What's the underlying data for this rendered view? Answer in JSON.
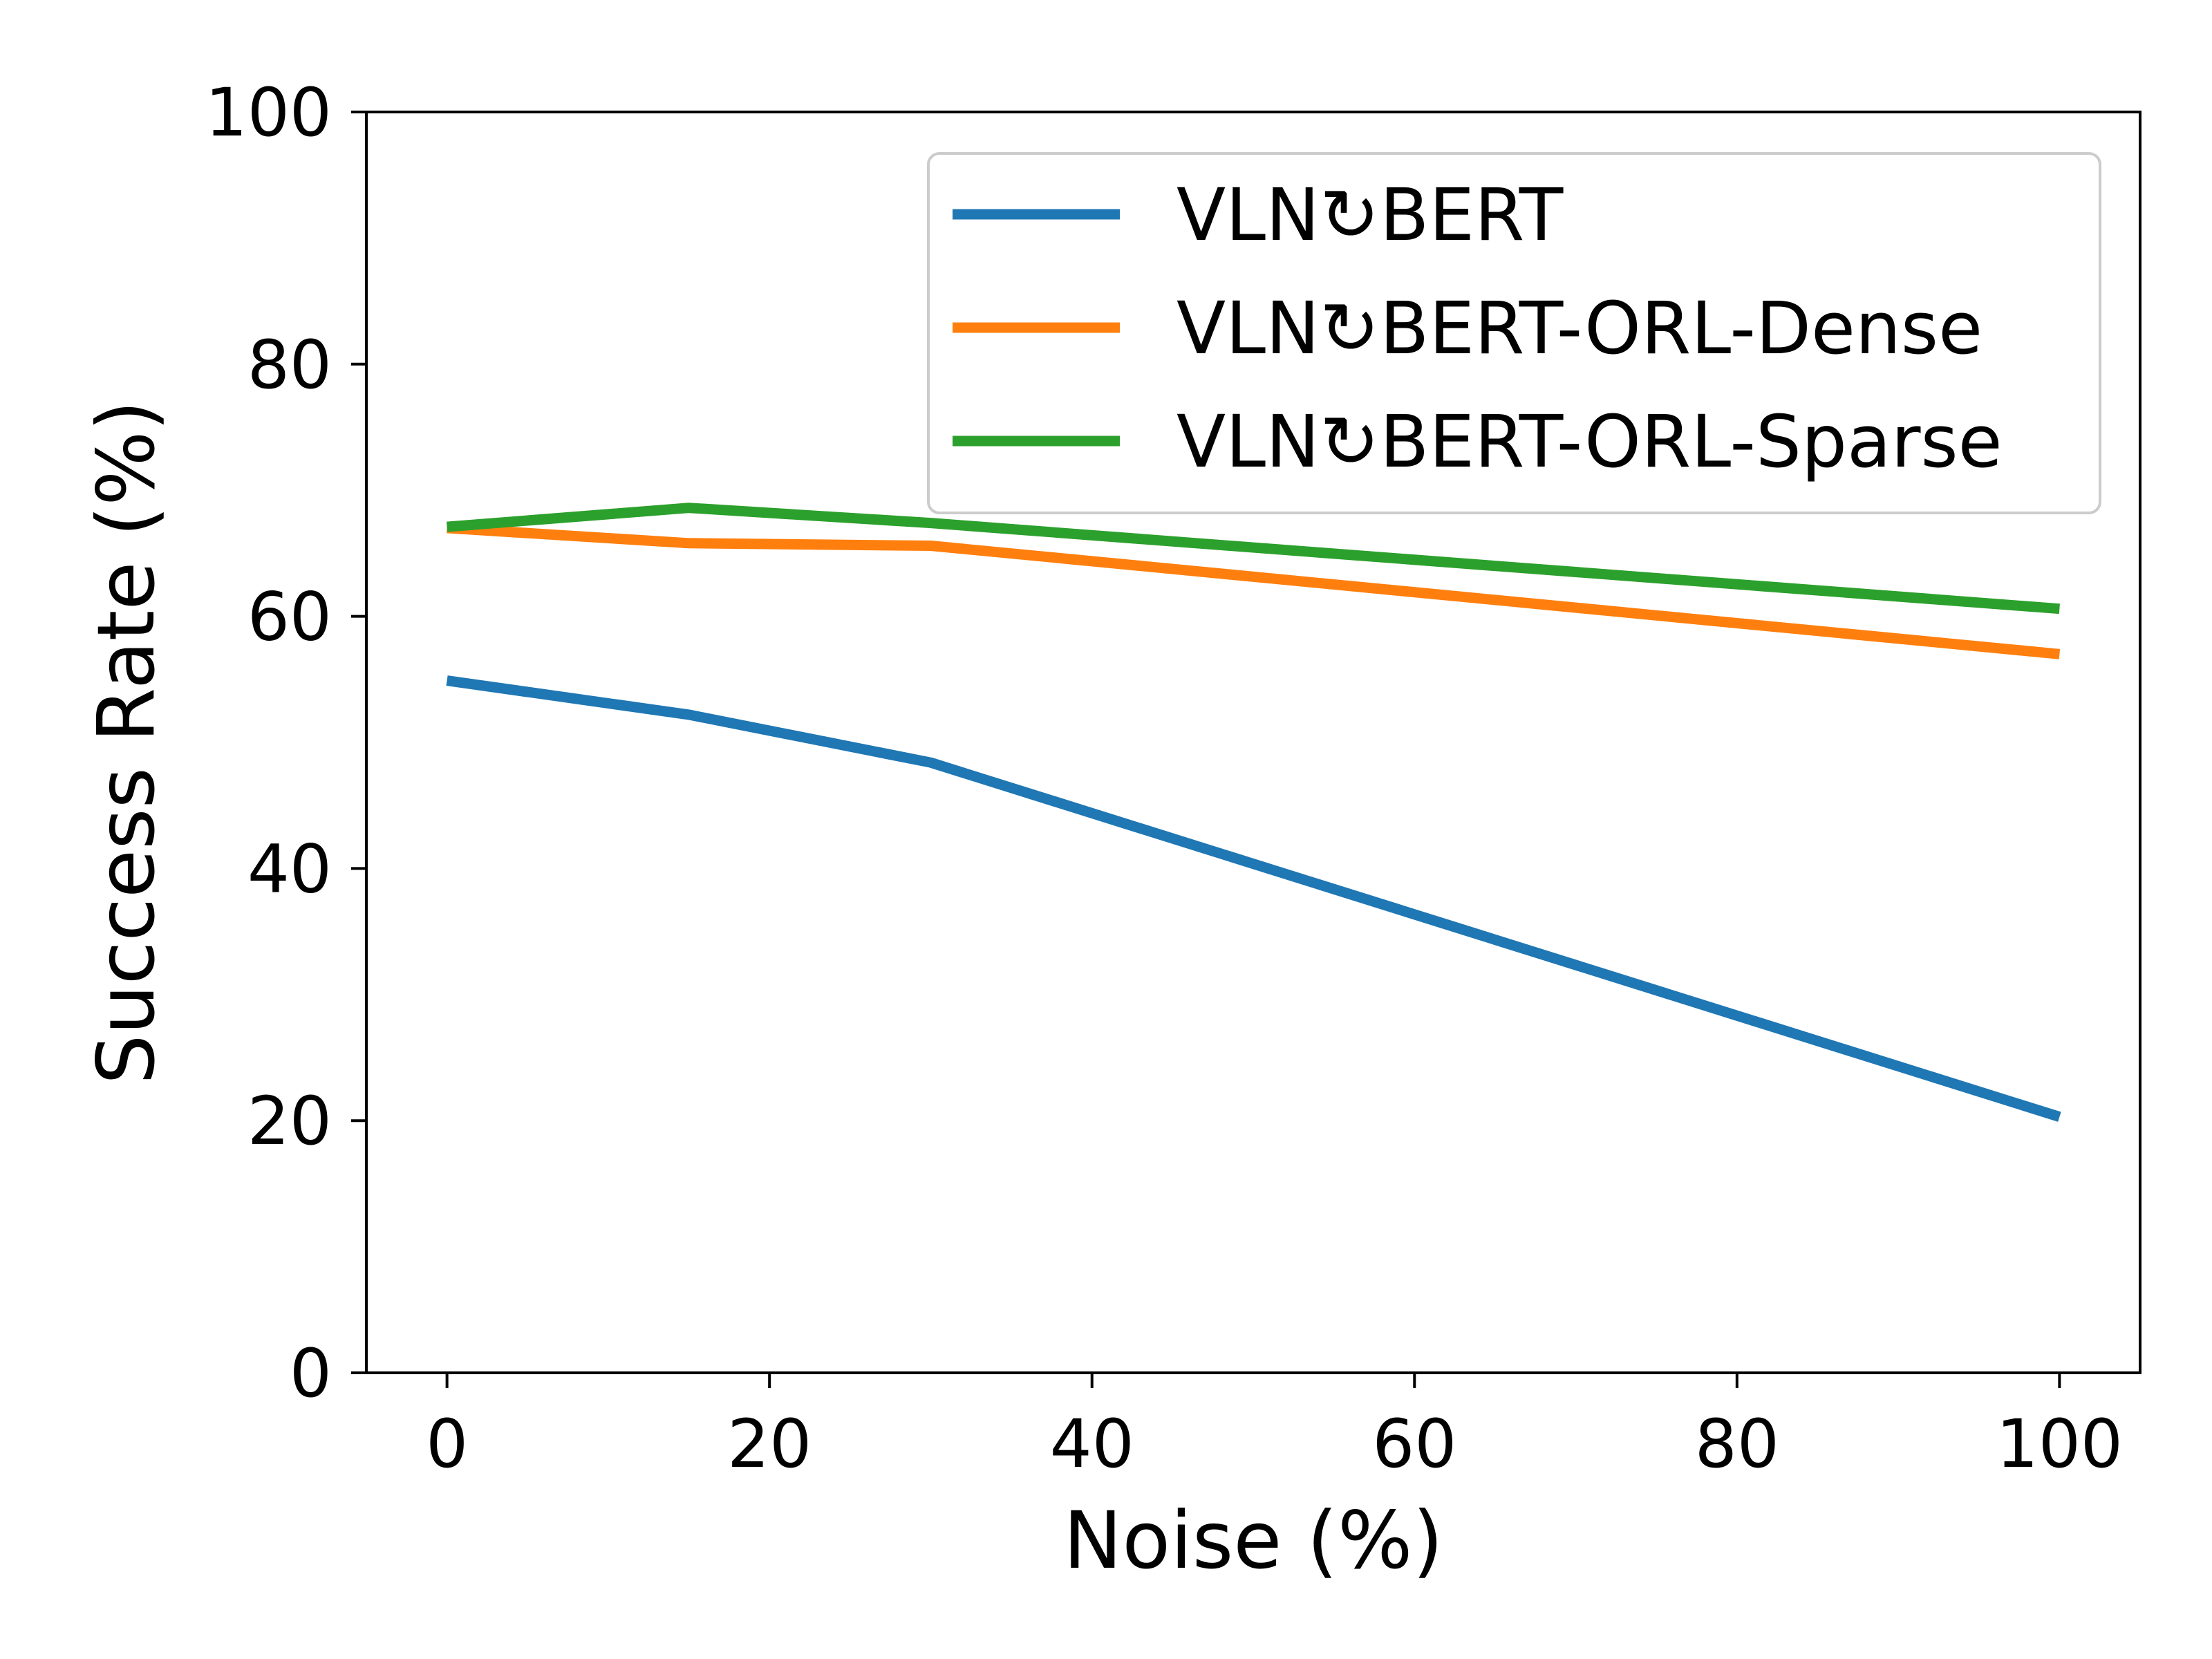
{
  "chart_data": {
    "type": "line",
    "xlabel": "Noise (%)",
    "ylabel": "Success Rate (%)",
    "xlim": [
      -5,
      105
    ],
    "ylim": [
      0,
      100
    ],
    "xticks": [
      0,
      20,
      40,
      60,
      80,
      100
    ],
    "yticks": [
      0,
      20,
      40,
      60,
      80,
      100
    ],
    "grid": false,
    "legend_position": "top-right",
    "x": [
      0,
      15,
      30,
      100
    ],
    "series": [
      {
        "name": "VLN↻BERT",
        "color": "#1f77b4",
        "values": [
          54.9,
          52.2,
          48.4,
          20.3
        ]
      },
      {
        "name": "VLN↻BERT-ORL-Dense",
        "color": "#ff7f0e",
        "values": [
          67.0,
          65.8,
          65.6,
          57.0
        ]
      },
      {
        "name": "VLN↻BERT-ORL-Sparse",
        "color": "#2ca02c",
        "values": [
          67.1,
          68.6,
          67.4,
          60.6
        ]
      }
    ]
  }
}
